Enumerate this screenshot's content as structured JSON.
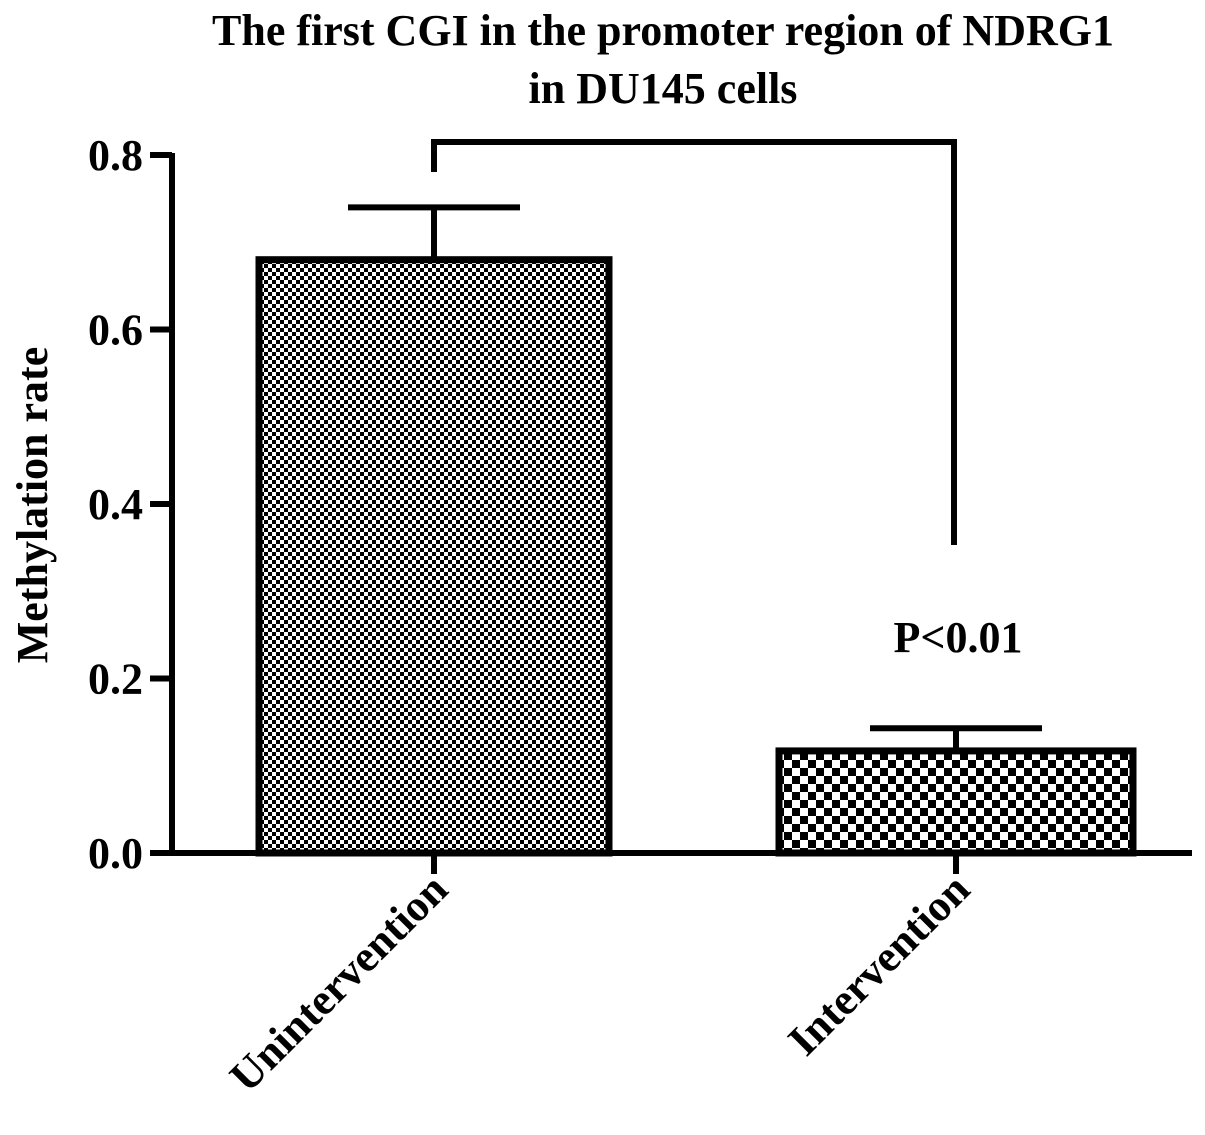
{
  "chart_data": {
    "type": "bar",
    "title": [
      "The first CGI in the promoter region of NDRG1",
      "in DU145 cells"
    ],
    "ylabel": "Methylation rate",
    "xlabel": "",
    "ylim": [
      0,
      0.8
    ],
    "yticks": [
      0.0,
      0.2,
      0.4,
      0.6,
      0.8
    ],
    "ytick_labels": [
      "0.0",
      "0.2",
      "0.4",
      "0.6",
      "0.8"
    ],
    "categories": [
      "Unintervention",
      "Intervention"
    ],
    "values": [
      0.68,
      0.117
    ],
    "error_upper": [
      0.74,
      0.143
    ],
    "patterns": [
      "fine-checker",
      "coarse-checker"
    ],
    "grid": false,
    "legend": "none",
    "significance": {
      "between": [
        0,
        1
      ],
      "label": "P<0.01"
    },
    "colors": {
      "bar_fill": "#ffffff",
      "bar_pattern": "#000000",
      "stroke": "#000000"
    }
  }
}
